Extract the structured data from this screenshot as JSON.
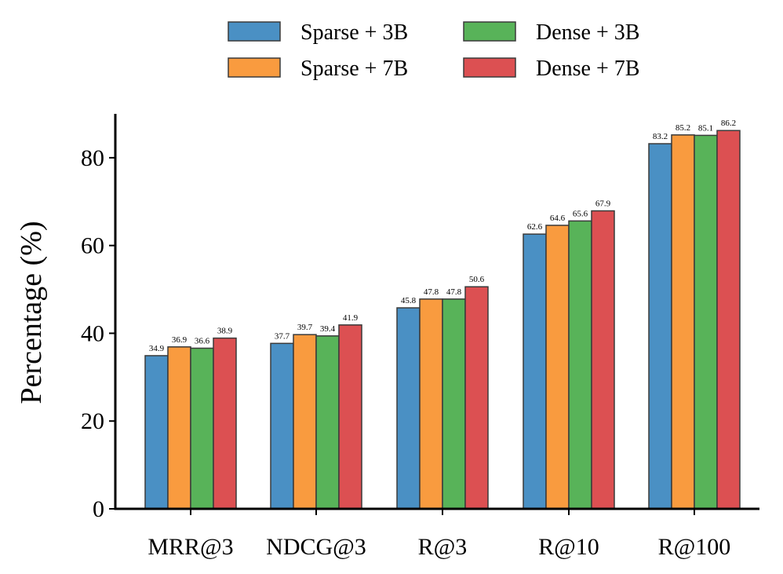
{
  "chart_data": {
    "type": "bar",
    "title": "",
    "xlabel": "",
    "ylabel": "Percentage (%)",
    "ylim": [
      0,
      90
    ],
    "yticks": [
      0,
      20,
      40,
      60,
      80
    ],
    "grid": false,
    "legend_position": "top-center",
    "categories": [
      "MRR@3",
      "NDCG@3",
      "R@3",
      "R@10",
      "R@100"
    ],
    "series": [
      {
        "name": "Sparse + 3B",
        "color": "#4a90c4",
        "values": [
          34.9,
          37.7,
          45.8,
          62.6,
          83.2
        ]
      },
      {
        "name": "Sparse + 7B",
        "color": "#f99b3f",
        "values": [
          36.9,
          39.7,
          47.8,
          64.6,
          85.2
        ]
      },
      {
        "name": "Dense + 3B",
        "color": "#58b359",
        "values": [
          36.6,
          39.4,
          47.8,
          65.6,
          85.1
        ]
      },
      {
        "name": "Dense + 7B",
        "color": "#dc5052",
        "values": [
          38.9,
          41.9,
          50.6,
          67.9,
          86.2
        ]
      }
    ]
  }
}
